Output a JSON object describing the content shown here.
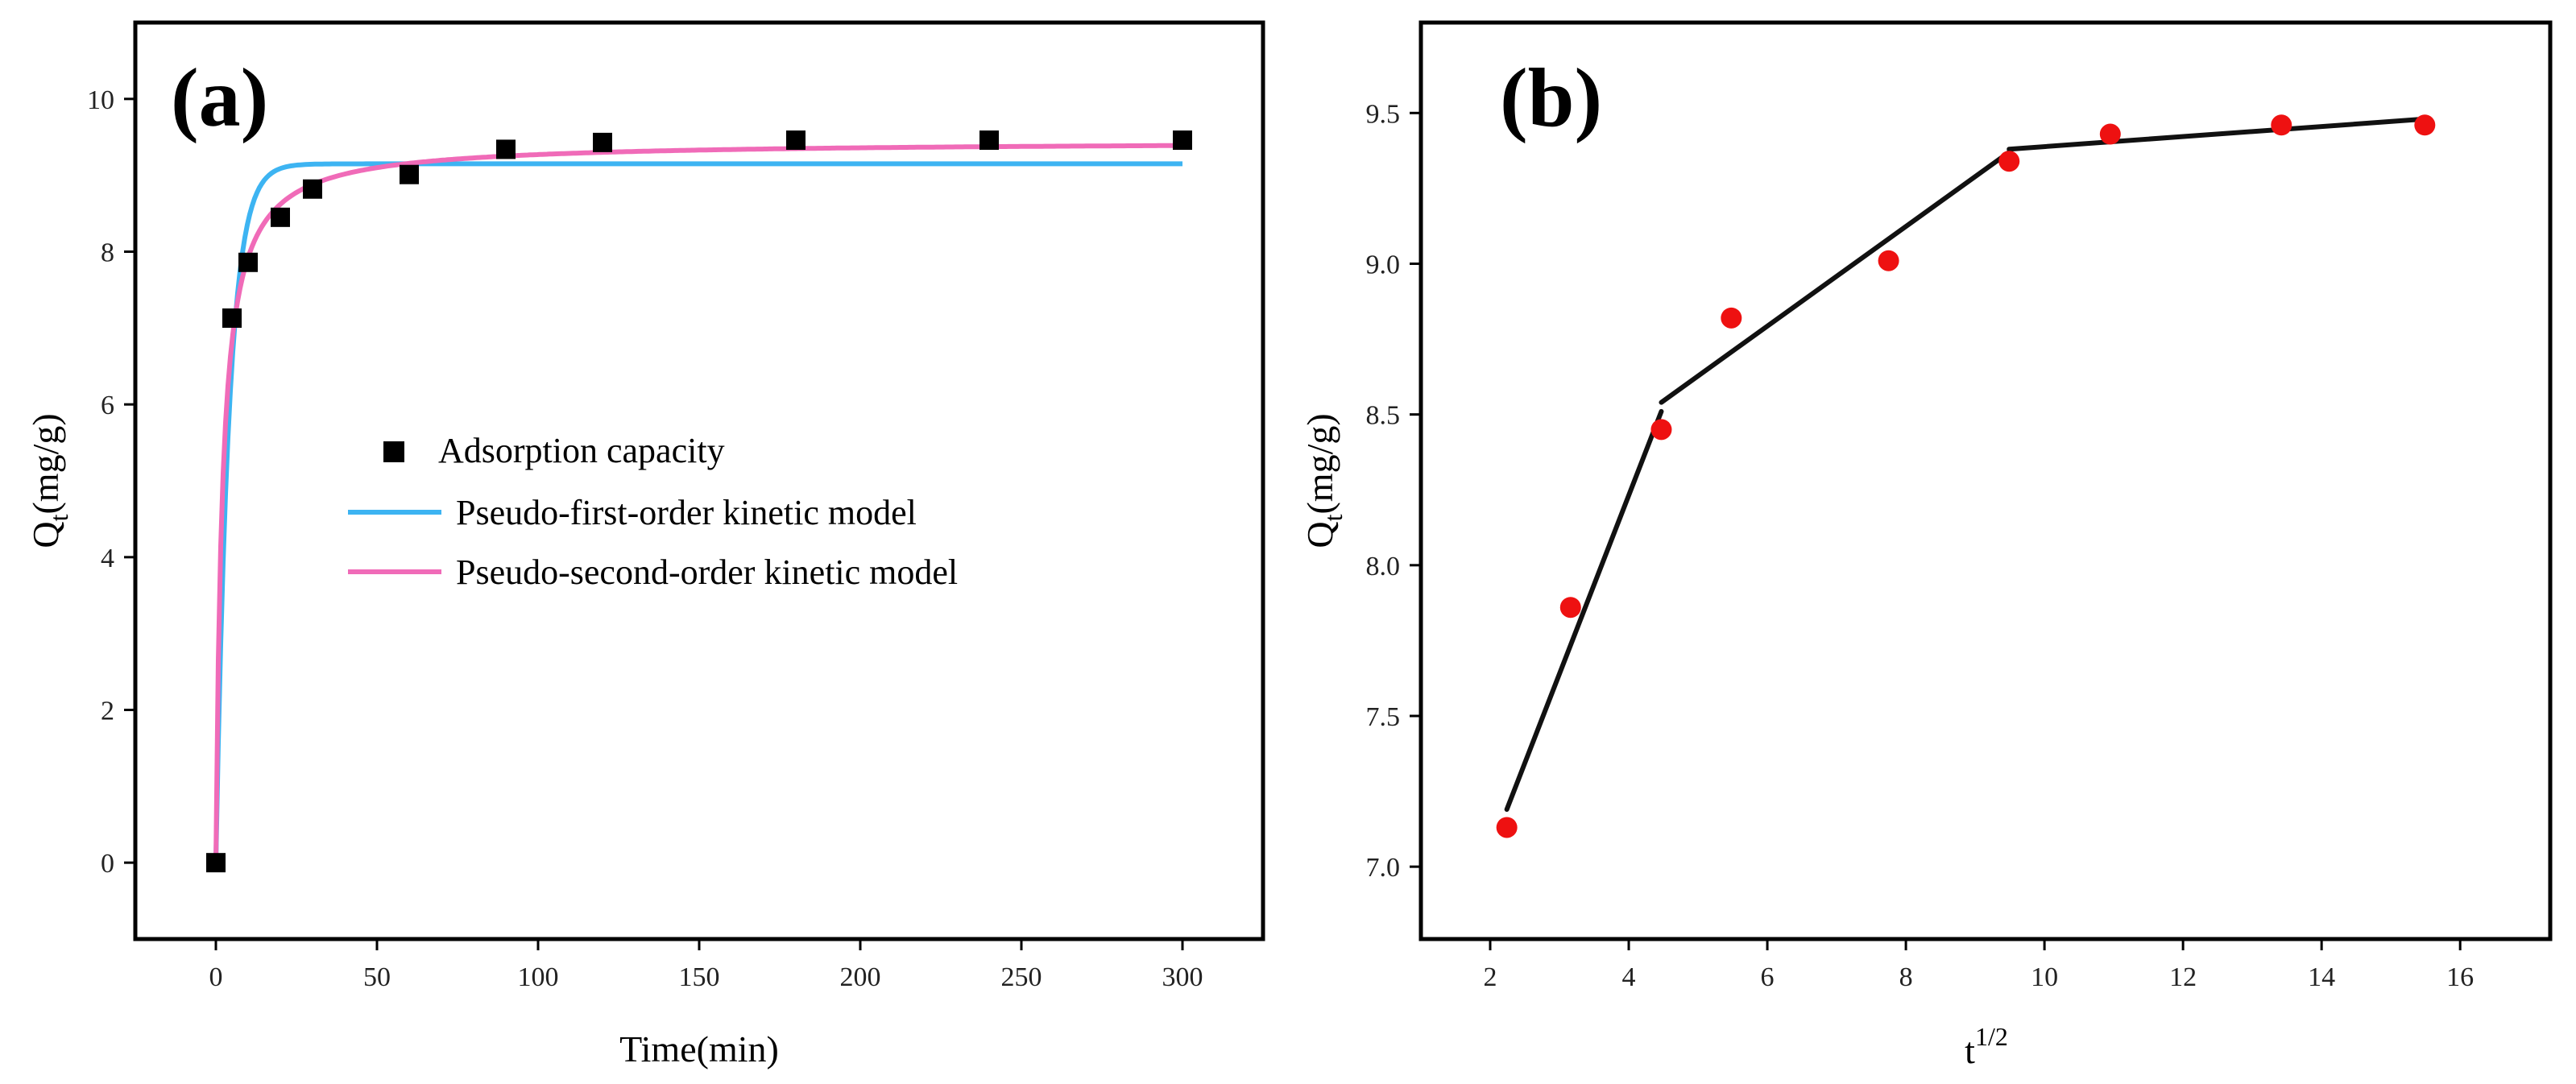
{
  "chart_data": [
    {
      "panel": "(a)",
      "type": "scatter",
      "xlabel": "Time(min)",
      "ylabel": "Q_t(mg/g)",
      "ylabel_main": "Q",
      "ylabel_sub": "t",
      "ylabel_rest": "(mg/g)",
      "xlim": [
        -25,
        325
      ],
      "ylim": [
        -1,
        11
      ],
      "xticks": [
        0,
        50,
        100,
        150,
        200,
        250,
        300
      ],
      "yticks": [
        0,
        2,
        4,
        6,
        8,
        10
      ],
      "legend_position": "center",
      "series": [
        {
          "name": "Adsorption capacity",
          "kind": "marker",
          "marker": "square",
          "color": "#000000",
          "x": [
            0,
            5,
            10,
            20,
            30,
            60,
            90,
            120,
            180,
            240,
            300
          ],
          "y": [
            0,
            7.13,
            7.86,
            8.45,
            8.82,
            9.01,
            9.34,
            9.43,
            9.46,
            9.46,
            9.46
          ]
        },
        {
          "name": "Pseudo-first-order kinetic model",
          "kind": "line",
          "color": "#3db4f2",
          "model": "pfo",
          "qe": 9.15,
          "k": 0.25,
          "x_range": [
            0,
            300
          ]
        },
        {
          "name": "Pseudo-second-order kinetic model",
          "kind": "line",
          "color": "#f06bb8",
          "model": "pso",
          "qe": 9.45,
          "k": 0.055,
          "x_range": [
            0,
            300
          ]
        }
      ]
    },
    {
      "panel": "(b)",
      "type": "scatter",
      "xlabel": "t^1/2",
      "xlabel_main": "t",
      "xlabel_sup": "1/2",
      "ylabel": "Q_t(mg/g)",
      "ylabel_main": "Q",
      "ylabel_sub": "t",
      "ylabel_rest": "(mg/g)",
      "xlim": [
        1,
        17.3
      ],
      "ylim": [
        6.76,
        9.8
      ],
      "xticks": [
        2,
        4,
        6,
        8,
        10,
        12,
        14,
        16
      ],
      "yticks": [
        7.0,
        7.5,
        8.0,
        8.5,
        9.0,
        9.5
      ],
      "ytick_labels": [
        "7.0",
        "7.5",
        "8.0",
        "8.5",
        "9.0",
        "9.5"
      ],
      "series": [
        {
          "name": "data",
          "kind": "marker",
          "marker": "circle",
          "color": "#ee1111",
          "x": [
            2.24,
            3.16,
            4.47,
            5.48,
            7.75,
            9.49,
            10.95,
            13.42,
            15.49
          ],
          "y": [
            7.13,
            7.86,
            8.45,
            8.82,
            9.01,
            9.34,
            9.43,
            9.46,
            9.46
          ]
        },
        {
          "name": "fit-1",
          "kind": "segment",
          "color": "#111111",
          "x": [
            2.24,
            4.47
          ],
          "y": [
            7.19,
            8.51
          ]
        },
        {
          "name": "fit-2",
          "kind": "segment",
          "color": "#111111",
          "x": [
            4.47,
            9.49
          ],
          "y": [
            8.54,
            9.37
          ]
        },
        {
          "name": "fit-3",
          "kind": "segment",
          "color": "#111111",
          "x": [
            9.49,
            15.49
          ],
          "y": [
            9.38,
            9.48
          ]
        }
      ]
    }
  ]
}
